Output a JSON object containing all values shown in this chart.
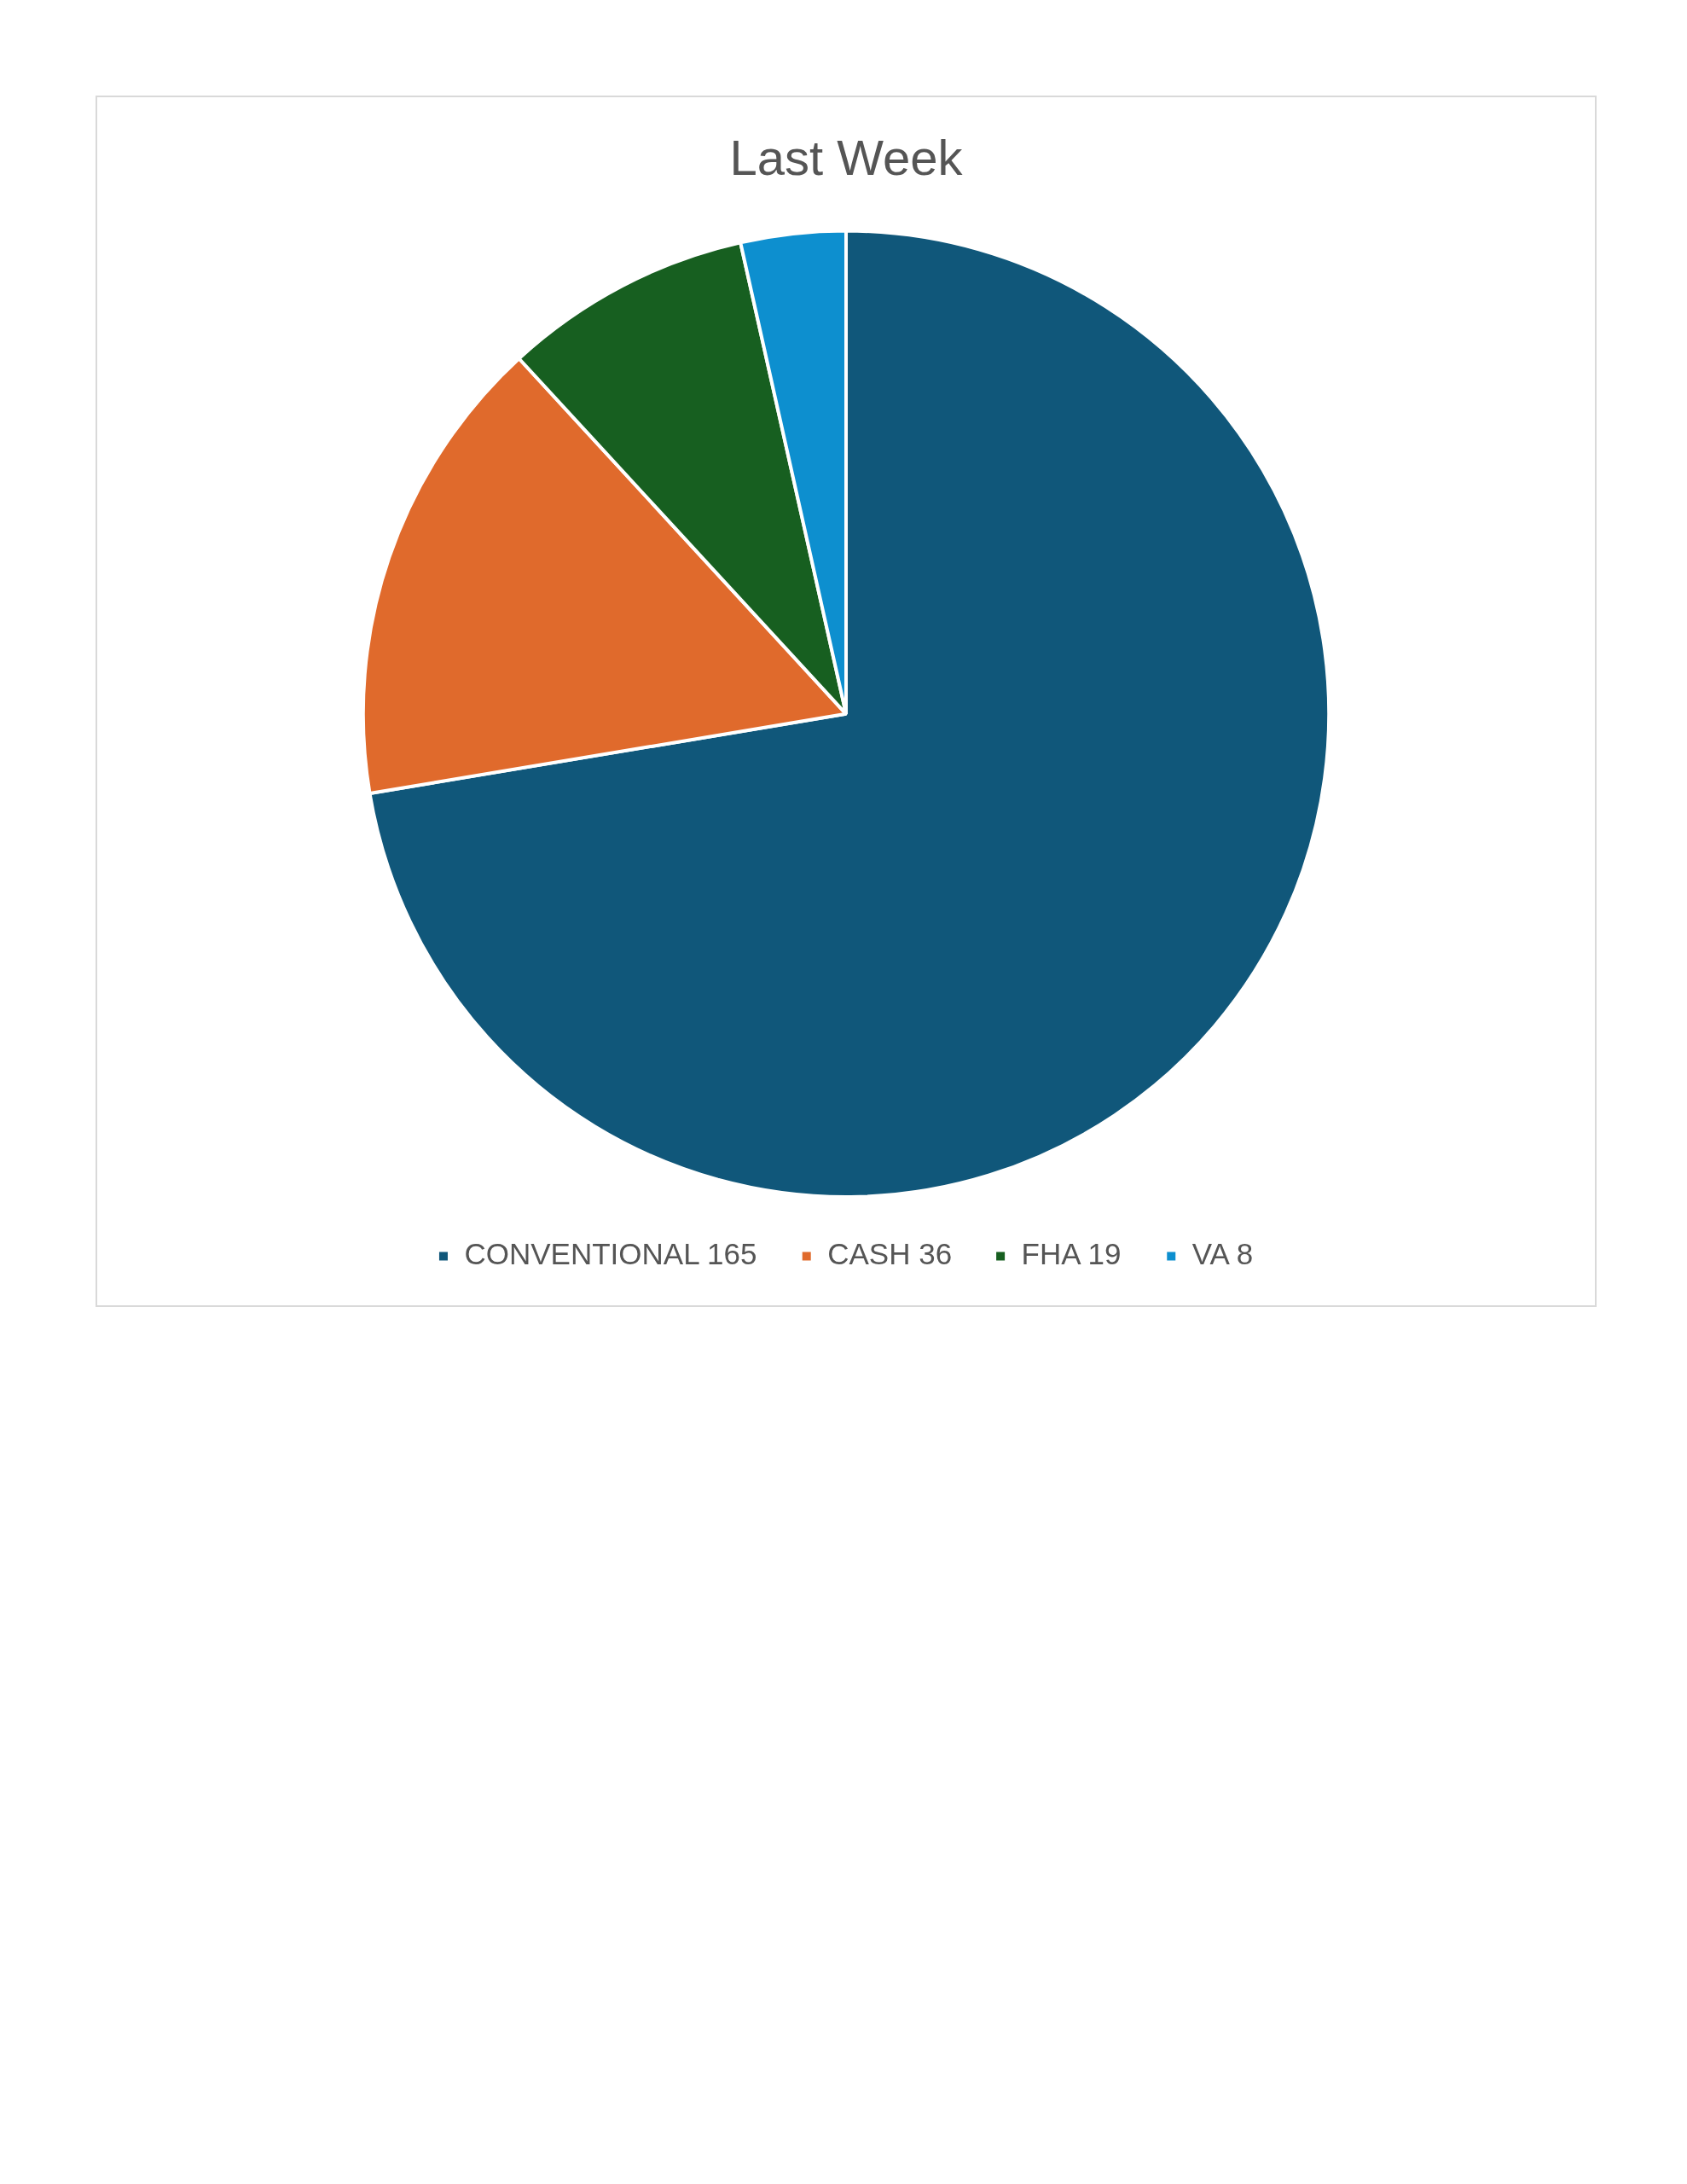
{
  "chart_data": {
    "type": "pie",
    "title": "Last Week",
    "categories": [
      "CONVENTIONAL 165",
      "CASH 36",
      "FHA 19",
      "VA 8"
    ],
    "values": [
      165,
      36,
      19,
      8
    ],
    "colors": [
      "#10577a",
      "#e06a2c",
      "#175f20",
      "#0d8fcf"
    ],
    "legend": "bottom"
  }
}
